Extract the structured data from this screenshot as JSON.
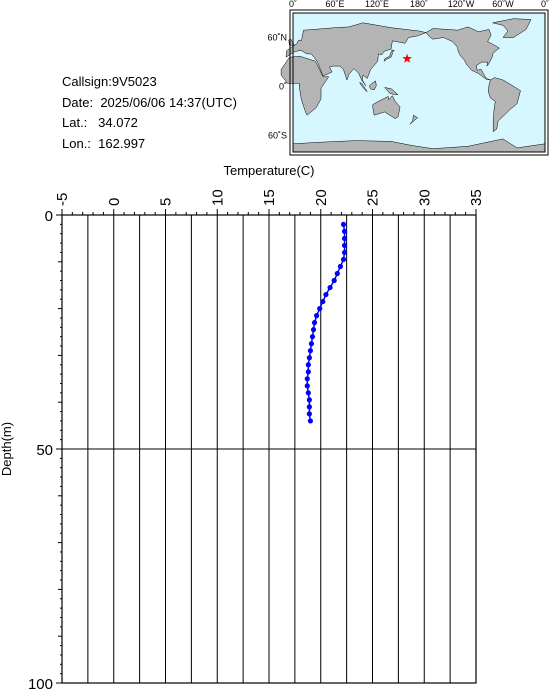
{
  "station": {
    "callsign_label": "Callsign:",
    "callsign": "9V5023",
    "date_label": "Date:",
    "date": "2025/06/06 14:37(UTC)",
    "lat_label": "Lat.:",
    "lat": "34.072",
    "lon_label": "Lon.:",
    "lon": "162.997"
  },
  "map": {
    "top_labels": [
      "0˚",
      "60˚E",
      "120˚E",
      "180˚",
      "120˚W",
      "60˚W",
      "0˚"
    ],
    "lat_labels": [
      "60˚N",
      "0˚",
      "60˚S"
    ],
    "ocean_color": "#d6f7ff",
    "land_color": "#b4b4b4",
    "marker_color": "#ff0000",
    "marker_lat": 34.072,
    "marker_lon": 162.997,
    "lon_range": [
      0,
      360
    ],
    "lat_range": [
      -80,
      90
    ]
  },
  "chart_data": {
    "type": "line",
    "xlabel": "Temperature(C)",
    "ylabel": "Depth(m)",
    "xlim": [
      -5,
      35
    ],
    "ylim": [
      0,
      100
    ],
    "y_inverted": true,
    "x_ticks": [
      "-5",
      "0",
      "5",
      "10",
      "15",
      "20",
      "25",
      "30",
      "35"
    ],
    "y_ticks": [
      "0",
      "50",
      "100"
    ],
    "grid": "vertical every 2.5, horizontal at 50",
    "line_color": "#0000ff",
    "series": [
      {
        "x": [
          22.2,
          22.3,
          22.3,
          22.3,
          22.3,
          22.2,
          21.9,
          21.6,
          21.3,
          20.9,
          20.5,
          20.2,
          19.9,
          19.6,
          19.4,
          19.3,
          19.2,
          19.1,
          19.0,
          18.9,
          18.8,
          18.8,
          18.7,
          18.7,
          18.8,
          18.9,
          18.9,
          18.9,
          19.0
        ],
        "y": [
          2,
          3.5,
          5,
          6.5,
          8,
          9.5,
          11,
          12.5,
          14,
          15.5,
          17,
          18.5,
          20,
          21.5,
          23,
          24.5,
          26,
          27.5,
          29,
          30.5,
          32,
          33.5,
          35,
          36.5,
          38,
          39.5,
          41,
          42.5,
          44
        ]
      }
    ]
  }
}
